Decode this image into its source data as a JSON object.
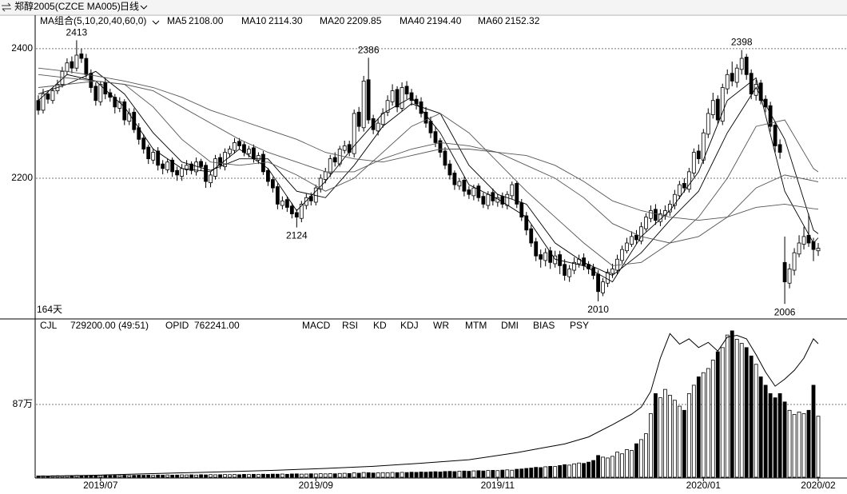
{
  "header": {
    "symbol": "郑醇2005(CZCE MA005)",
    "period": "日线"
  },
  "chart_data": [
    {
      "type": "candlestick",
      "ma_group": "MA组合(5,10,20,40,60,0)",
      "day_count": "164天",
      "xlim": [
        -0.5,
        163.5
      ],
      "ylim": [
        1984,
        2448
      ],
      "yticks": [
        2200,
        2400
      ],
      "grid": true,
      "open": [
        2320,
        2305,
        2330,
        2320,
        2335,
        2345,
        2365,
        2380,
        2370,
        2392,
        2385,
        2362,
        2342,
        2318,
        2348,
        2332,
        2325,
        2308,
        2318,
        2288,
        2302,
        2278,
        2262,
        2248,
        2228,
        2242,
        2222,
        2213,
        2228,
        2212,
        2203,
        2213,
        2222,
        2210,
        2226,
        2220,
        2193,
        2203,
        2232,
        2218,
        2238,
        2243,
        2257,
        2252,
        2238,
        2247,
        2228,
        2237,
        2212,
        2198,
        2187,
        2158,
        2167,
        2157,
        2147,
        2138,
        2158,
        2172,
        2163,
        2183,
        2198,
        2208,
        2232,
        2222,
        2243,
        2252,
        2238,
        2302,
        2278,
        2352,
        2292,
        2273,
        2283,
        2302,
        2318,
        2337,
        2308,
        2342,
        2332,
        2322,
        2318,
        2302,
        2288,
        2272,
        2258,
        2242,
        2222,
        2208,
        2188,
        2197,
        2182,
        2173,
        2188,
        2172,
        2158,
        2178,
        2163,
        2172,
        2158,
        2173,
        2192,
        2162,
        2142,
        2122,
        2102,
        2082,
        2073,
        2088,
        2068,
        2082,
        2067,
        2048,
        2058,
        2068,
        2077,
        2067,
        2062,
        2052,
        2023,
        2038,
        2053,
        2058,
        2073,
        2088,
        2098,
        2112,
        2103,
        2122,
        2138,
        2152,
        2133,
        2143,
        2148,
        2158,
        2173,
        2192,
        2183,
        2208,
        2242,
        2228,
        2268,
        2298,
        2322,
        2288,
        2338,
        2362,
        2348,
        2368,
        2387,
        2362,
        2328,
        2347,
        2322,
        2312,
        2282,
        2252,
        2070,
        2038,
        2058,
        2083,
        2098,
        2112,
        2102,
        2088
      ],
      "high": [
        2328,
        2338,
        2335,
        2340,
        2352,
        2372,
        2385,
        2388,
        2413,
        2400,
        2392,
        2368,
        2348,
        2350,
        2355,
        2338,
        2330,
        2325,
        2322,
        2308,
        2308,
        2285,
        2268,
        2252,
        2246,
        2248,
        2228,
        2230,
        2232,
        2218,
        2222,
        2228,
        2226,
        2232,
        2230,
        2225,
        2210,
        2236,
        2238,
        2246,
        2250,
        2262,
        2262,
        2256,
        2250,
        2252,
        2240,
        2242,
        2216,
        2202,
        2192,
        2172,
        2172,
        2162,
        2152,
        2165,
        2176,
        2178,
        2190,
        2206,
        2216,
        2236,
        2240,
        2250,
        2258,
        2258,
        2306,
        2310,
        2358,
        2386,
        2298,
        2292,
        2308,
        2328,
        2345,
        2342,
        2348,
        2350,
        2338,
        2328,
        2325,
        2310,
        2295,
        2280,
        2262,
        2248,
        2228,
        2212,
        2200,
        2202,
        2188,
        2190,
        2192,
        2178,
        2180,
        2184,
        2176,
        2178,
        2180,
        2195,
        2196,
        2168,
        2148,
        2128,
        2108,
        2090,
        2092,
        2094,
        2088,
        2088,
        2075,
        2066,
        2078,
        2082,
        2084,
        2072,
        2068,
        2058,
        2046,
        2060,
        2068,
        2082,
        2096,
        2108,
        2118,
        2120,
        2132,
        2146,
        2158,
        2160,
        2152,
        2158,
        2166,
        2182,
        2196,
        2200,
        2216,
        2246,
        2252,
        2276,
        2308,
        2332,
        2328,
        2346,
        2368,
        2380,
        2376,
        2398,
        2392,
        2368,
        2352,
        2352,
        2328,
        2318,
        2288,
        2260,
        2110,
        2068,
        2092,
        2112,
        2125,
        2145,
        2108,
        2100
      ],
      "low": [
        2298,
        2300,
        2315,
        2315,
        2330,
        2340,
        2360,
        2362,
        2365,
        2378,
        2355,
        2332,
        2312,
        2312,
        2322,
        2318,
        2300,
        2302,
        2282,
        2282,
        2270,
        2252,
        2238,
        2222,
        2222,
        2212,
        2206,
        2208,
        2202,
        2196,
        2196,
        2205,
        2206,
        2204,
        2212,
        2185,
        2186,
        2198,
        2214,
        2212,
        2232,
        2238,
        2244,
        2234,
        2232,
        2224,
        2222,
        2205,
        2188,
        2178,
        2152,
        2152,
        2148,
        2138,
        2124,
        2132,
        2152,
        2158,
        2158,
        2178,
        2192,
        2202,
        2218,
        2218,
        2238,
        2234,
        2232,
        2272,
        2272,
        2284,
        2268,
        2266,
        2278,
        2296,
        2312,
        2302,
        2304,
        2322,
        2312,
        2306,
        2294,
        2278,
        2262,
        2248,
        2232,
        2214,
        2198,
        2182,
        2182,
        2172,
        2168,
        2166,
        2164,
        2154,
        2152,
        2158,
        2156,
        2154,
        2152,
        2168,
        2154,
        2134,
        2112,
        2094,
        2072,
        2062,
        2064,
        2060,
        2062,
        2052,
        2042,
        2040,
        2052,
        2062,
        2058,
        2052,
        2044,
        2010,
        2018,
        2032,
        2046,
        2052,
        2068,
        2084,
        2094,
        2098,
        2098,
        2118,
        2132,
        2128,
        2126,
        2136,
        2142,
        2152,
        2168,
        2178,
        2178,
        2202,
        2222,
        2222,
        2262,
        2292,
        2284,
        2282,
        2330,
        2342,
        2340,
        2360,
        2352,
        2322,
        2320,
        2314,
        2302,
        2272,
        2240,
        2230,
        2006,
        2030,
        2050,
        2078,
        2090,
        2094,
        2072,
        2080
      ],
      "close": [
        2305,
        2330,
        2322,
        2335,
        2345,
        2365,
        2378,
        2370,
        2390,
        2385,
        2360,
        2340,
        2320,
        2345,
        2330,
        2325,
        2310,
        2318,
        2290,
        2300,
        2275,
        2260,
        2245,
        2230,
        2240,
        2220,
        2215,
        2225,
        2210,
        2205,
        2215,
        2220,
        2212,
        2225,
        2218,
        2195,
        2205,
        2230,
        2220,
        2240,
        2245,
        2255,
        2250,
        2240,
        2245,
        2230,
        2235,
        2210,
        2195,
        2185,
        2160,
        2165,
        2155,
        2145,
        2140,
        2160,
        2170,
        2165,
        2185,
        2200,
        2210,
        2230,
        2225,
        2245,
        2250,
        2240,
        2300,
        2280,
        2350,
        2290,
        2275,
        2285,
        2300,
        2320,
        2335,
        2310,
        2340,
        2330,
        2320,
        2315,
        2300,
        2285,
        2270,
        2255,
        2240,
        2220,
        2205,
        2190,
        2195,
        2180,
        2175,
        2185,
        2170,
        2160,
        2175,
        2165,
        2170,
        2160,
        2175,
        2190,
        2160,
        2140,
        2120,
        2100,
        2080,
        2075,
        2085,
        2070,
        2080,
        2065,
        2050,
        2060,
        2070,
        2075,
        2065,
        2060,
        2050,
        2025,
        2040,
        2055,
        2060,
        2075,
        2090,
        2100,
        2110,
        2105,
        2125,
        2140,
        2150,
        2135,
        2145,
        2150,
        2160,
        2175,
        2190,
        2185,
        2210,
        2240,
        2230,
        2270,
        2300,
        2320,
        2290,
        2340,
        2360,
        2350,
        2370,
        2385,
        2360,
        2330,
        2345,
        2320,
        2310,
        2280,
        2250,
        2240,
        2040,
        2060,
        2085,
        2100,
        2110,
        2100,
        2090,
        2092
      ],
      "annotations": [
        {
          "x": 8,
          "value": 2413
        },
        {
          "x": 69,
          "value": 2386
        },
        {
          "x": 54,
          "value": 2124
        },
        {
          "x": 117,
          "value": 2010
        },
        {
          "x": 147,
          "value": 2398
        },
        {
          "x": 156,
          "value": 2006
        }
      ],
      "ma_x": [
        0,
        6,
        12,
        18,
        24,
        30,
        36,
        42,
        48,
        54,
        60,
        66,
        72,
        78,
        84,
        90,
        96,
        102,
        108,
        114,
        120,
        126,
        132,
        138,
        144,
        150,
        156,
        162,
        163
      ],
      "series": [
        {
          "name": "MA5",
          "color": "#000000",
          "last": {
            "value": 2108,
            "label": "2108.00"
          },
          "values": [
            2320,
            2360,
            2350,
            2310,
            2245,
            2215,
            2210,
            2245,
            2215,
            2150,
            2195,
            2250,
            2300,
            2325,
            2270,
            2190,
            2168,
            2140,
            2075,
            2065,
            2040,
            2110,
            2150,
            2210,
            2320,
            2355,
            2180,
            2100,
            2108
          ]
        },
        {
          "name": "MA10",
          "color": "#000000",
          "last": {
            "value": 2114.3,
            "label": "2114.30"
          },
          "values": [
            2330,
            2345,
            2365,
            2330,
            2270,
            2225,
            2212,
            2230,
            2230,
            2180,
            2170,
            2220,
            2280,
            2315,
            2300,
            2220,
            2175,
            2160,
            2100,
            2070,
            2050,
            2085,
            2135,
            2180,
            2270,
            2340,
            2260,
            2120,
            2114.3
          ]
        },
        {
          "name": "MA20",
          "color": "#555555",
          "last": {
            "value": 2209.85,
            "label": "2209.85"
          },
          "values": [
            2340,
            2345,
            2350,
            2345,
            2310,
            2260,
            2225,
            2220,
            2225,
            2205,
            2180,
            2200,
            2240,
            2280,
            2300,
            2270,
            2225,
            2180,
            2140,
            2100,
            2065,
            2070,
            2100,
            2140,
            2200,
            2280,
            2290,
            2215,
            2209.85
          ]
        },
        {
          "name": "MA40",
          "color": "#555555",
          "last": {
            "value": 2194.4,
            "label": "2194.40"
          },
          "values": [
            2360,
            2355,
            2350,
            2345,
            2335,
            2310,
            2285,
            2260,
            2240,
            2225,
            2210,
            2210,
            2230,
            2245,
            2255,
            2250,
            2240,
            2220,
            2200,
            2170,
            2130,
            2110,
            2100,
            2110,
            2140,
            2185,
            2205,
            2196,
            2194.4
          ]
        },
        {
          "name": "MA60",
          "color": "#555555",
          "last": {
            "value": 2152.32,
            "label": "2152.32"
          },
          "values": [
            2370,
            2365,
            2358,
            2350,
            2340,
            2325,
            2305,
            2290,
            2275,
            2260,
            2240,
            2230,
            2225,
            2235,
            2245,
            2245,
            2240,
            2235,
            2220,
            2195,
            2165,
            2150,
            2140,
            2135,
            2140,
            2155,
            2160,
            2153,
            2152.32
          ]
        }
      ]
    },
    {
      "type": "volume",
      "name": "CJL",
      "last": {
        "value": 729200,
        "label": "729200.00"
      },
      "ratio": "(49:51)",
      "xlim": [
        -0.5,
        163.5
      ],
      "xticks": [
        {
          "value": 13,
          "label": "2019/07"
        },
        {
          "value": 58,
          "label": "2019/09"
        },
        {
          "value": 96,
          "label": "2019/11"
        },
        {
          "value": 139,
          "label": "2020/01"
        },
        {
          "value": 163,
          "label": "2020/02"
        }
      ],
      "ylim": [
        0,
        1883000
      ],
      "yticks": [
        {
          "value": 870000,
          "label": "87万"
        }
      ],
      "grid": true,
      "values": [
        15000,
        16000,
        14000,
        17000,
        18000,
        16000,
        19000,
        20000,
        22000,
        18000,
        17000,
        19000,
        18000,
        20000,
        21000,
        19000,
        22000,
        20000,
        23000,
        21000,
        22000,
        24000,
        23000,
        25000,
        22000,
        26000,
        24000,
        27000,
        25000,
        26000,
        28000,
        27000,
        29000,
        26000,
        30000,
        28000,
        31000,
        29000,
        30000,
        32000,
        31000,
        33000,
        30000,
        34000,
        32000,
        35000,
        33000,
        36000,
        34000,
        37000,
        36000,
        38000,
        35000,
        39000,
        40000,
        37000,
        38000,
        41000,
        39000,
        42000,
        40000,
        43000,
        41000,
        45000,
        47000,
        44000,
        52000,
        48000,
        56000,
        54000,
        50000,
        52000,
        55000,
        53000,
        57000,
        55000,
        58000,
        56000,
        60000,
        58000,
        62000,
        60000,
        64000,
        66000,
        63000,
        68000,
        70000,
        67000,
        72000,
        74000,
        71000,
        76000,
        78000,
        75000,
        80000,
        82000,
        79000,
        85000,
        88000,
        84000,
        95000,
        98000,
        105000,
        110000,
        118000,
        115000,
        125000,
        130000,
        128000,
        140000,
        150000,
        145000,
        160000,
        170000,
        165000,
        180000,
        200000,
        260000,
        240000,
        230000,
        250000,
        300000,
        280000,
        330000,
        320000,
        400000,
        450000,
        520000,
        760000,
        1000000,
        950000,
        1050000,
        980000,
        920000,
        850000,
        800000,
        1000000,
        1100000,
        1200000,
        1250000,
        1300000,
        1400000,
        1500000,
        1550000,
        1700000,
        1750000,
        1650000,
        1600000,
        1550000,
        1450000,
        1350000,
        1200000,
        1100000,
        1000000,
        950000,
        1000000,
        900000,
        800000,
        750000,
        780000,
        760000,
        800000,
        1100000,
        729200
      ],
      "y2lim": [
        0,
        899000
      ],
      "oi": {
        "name": "OPID",
        "axis": "y2",
        "color": "#000000",
        "last": {
          "value": 762241,
          "label": "762241.00"
        },
        "x": [
          0,
          10,
          20,
          30,
          40,
          50,
          60,
          70,
          80,
          90,
          100,
          105,
          110,
          115,
          120,
          124,
          126,
          128,
          130,
          132,
          134,
          136,
          138,
          140,
          142,
          144,
          146,
          148,
          150,
          152,
          154,
          156,
          158,
          160,
          162,
          163
        ],
        "values": [
          5000,
          10000,
          18000,
          25000,
          32000,
          40000,
          50000,
          62000,
          80000,
          100000,
          140000,
          165000,
          190000,
          230000,
          300000,
          360000,
          400000,
          490000,
          680000,
          820000,
          760000,
          790000,
          740000,
          770000,
          720000,
          800000,
          810000,
          790000,
          700000,
          600000,
          520000,
          560000,
          610000,
          680000,
          790000,
          762241
        ]
      },
      "tabs": [
        "MACD",
        "RSI",
        "KD",
        "KDJ",
        "WR",
        "MTM",
        "DMI",
        "BIAS",
        "PSY"
      ]
    }
  ]
}
